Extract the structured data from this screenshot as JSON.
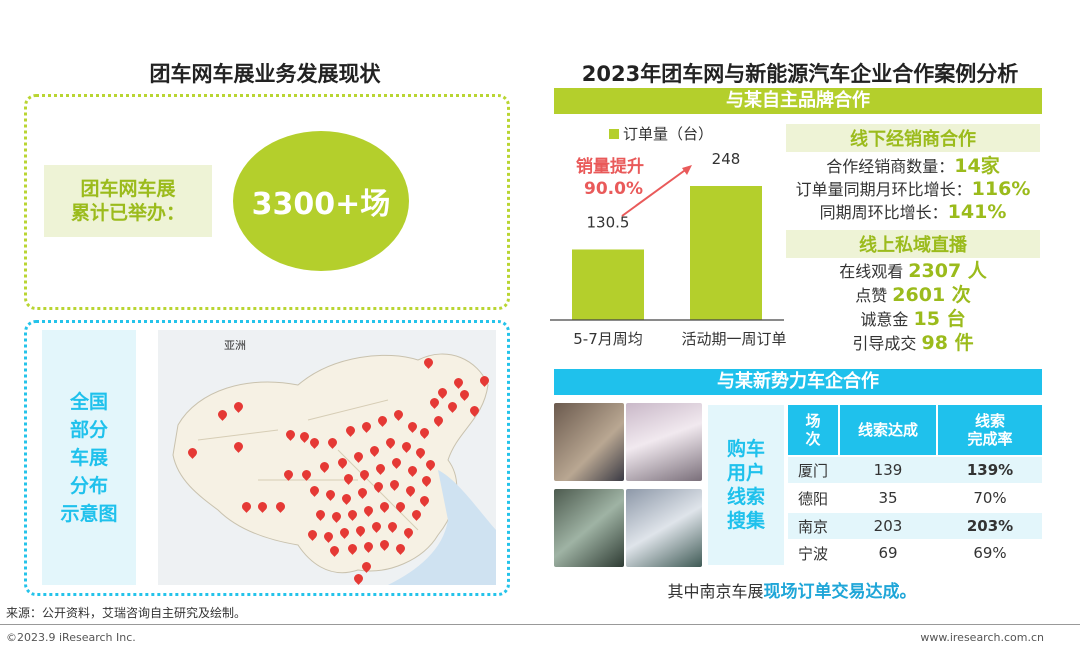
{
  "left": {
    "title": "团车网车展业务发展现状",
    "label_line1": "团车网车展",
    "label_line2": "累计已举办：",
    "circle_value": "3300+场",
    "map_label_lines": [
      "全国",
      "部分",
      "车展",
      "分布",
      "示意图"
    ],
    "map_region_label": "亚洲"
  },
  "right": {
    "title": "2023年团车网与新能源汽车企业合作案例分析",
    "section1_title": "与某自主品牌合作",
    "growth_label": "销量提升",
    "growth_value": "90.0%",
    "offline": {
      "title": "线下经销商合作",
      "rows": [
        {
          "label": "合作经销商数量：",
          "value": "14家"
        },
        {
          "label": "订单量同期月环比增长：",
          "value": "116%"
        },
        {
          "label": "同期周环比增长：",
          "value": "141%"
        }
      ]
    },
    "online": {
      "title": "线上私域直播",
      "rows": [
        {
          "label": "在线观看 ",
          "value": "2307 人"
        },
        {
          "label": "点赞 ",
          "value": "2601 次"
        },
        {
          "label": "诚意金 ",
          "value": "15 台"
        },
        {
          "label": "引导成交 ",
          "value": "98 件"
        }
      ]
    },
    "section2_title": "与某新势力车企合作",
    "search_label_lines": [
      "购车",
      "用户",
      "线索",
      "搜集"
    ],
    "table": {
      "headers": [
        [
          "场",
          "次"
        ],
        [
          "线索达成"
        ],
        [
          "线索",
          "完成率"
        ]
      ],
      "rows": [
        {
          "city": "厦门",
          "leads": "139",
          "rate": "139%",
          "bold": true
        },
        {
          "city": "德阳",
          "leads": "35",
          "rate": "70%",
          "bold": false
        },
        {
          "city": "南京",
          "leads": "203",
          "rate": "203%",
          "bold": true
        },
        {
          "city": "宁波",
          "leads": "69",
          "rate": "69%",
          "bold": false
        }
      ]
    },
    "footnote_prefix": "其中南京车展",
    "footnote_highlight": "现场订单交易达成。"
  },
  "chart_data": {
    "type": "bar",
    "legend": "订单量（台）",
    "categories": [
      "5-7月周均",
      "活动期一周订单"
    ],
    "series": [
      {
        "name": "订单量（台）",
        "values": [
          130.5,
          248
        ]
      }
    ],
    "value_labels": [
      "130.5",
      "248"
    ],
    "annotation": "销量提升 90.0%"
  },
  "footer": {
    "source": "来源：公开资料，艾瑞咨询自主研究及绘制。",
    "copyright": "©2023.9 iResearch Inc.",
    "website": "www.iresearch.com.cn"
  },
  "colors": {
    "green": "#b4cf2c",
    "blue": "#1fc1ec",
    "red": "#e95a5a",
    "highlight_green": "#9bbb1c"
  }
}
